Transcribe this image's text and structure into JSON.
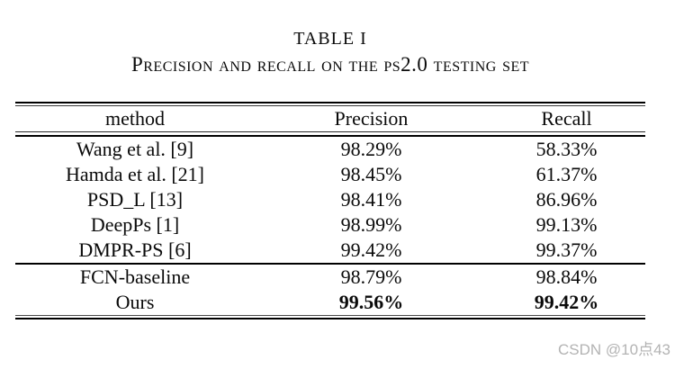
{
  "caption": {
    "title": "TABLE I",
    "subtitle": "Precision and recall on the ps2.0 testing set"
  },
  "table": {
    "columns": [
      "method",
      "Precision",
      "Recall"
    ],
    "rows": [
      {
        "method": "Wang et al. [9]",
        "precision": "98.29%",
        "recall": "58.33%"
      },
      {
        "method": "Hamda et al. [21]",
        "precision": "98.45%",
        "recall": "61.37%"
      },
      {
        "method": "PSD_L [13]",
        "precision": "98.41%",
        "recall": "86.96%"
      },
      {
        "method": "DeepPs [1]",
        "precision": "98.99%",
        "recall": "99.13%"
      },
      {
        "method": "DMPR-PS [6]",
        "precision": "99.42%",
        "recall": "99.37%"
      },
      {
        "method": "FCN-baseline",
        "precision": "98.79%",
        "recall": "98.84%"
      },
      {
        "method": "Ours",
        "precision": "99.56%",
        "recall": "99.42%"
      }
    ]
  },
  "watermark": {
    "text": "CSDN @10点43",
    "color": "#b3b3b3"
  }
}
